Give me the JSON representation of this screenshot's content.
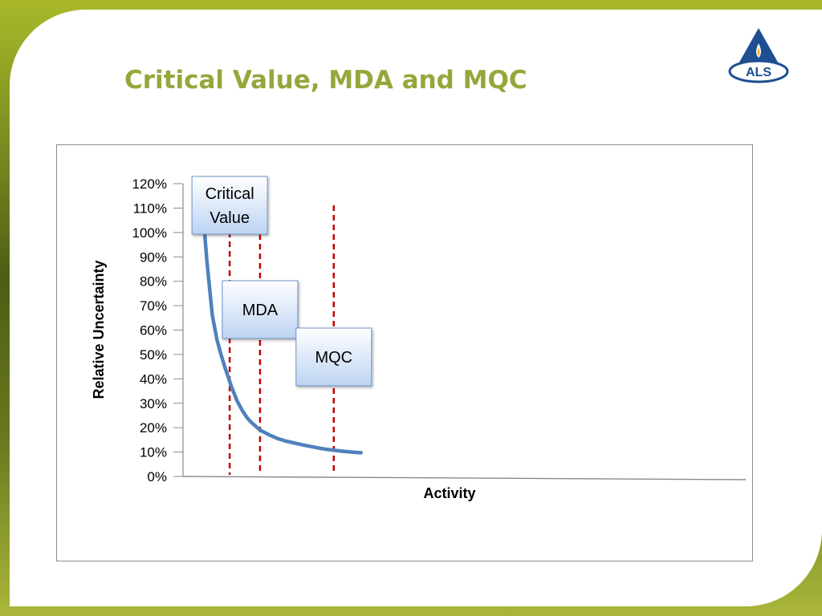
{
  "slide": {
    "title": "Critical Value, MDA and MQC",
    "logo_text": "ALS"
  },
  "colors": {
    "title": "#93a83a",
    "curve": "#4f81bd",
    "marker_line": "#c00000",
    "logo_blue": "#1d4f91"
  },
  "chart_data": {
    "type": "line",
    "title": "",
    "xlabel": "Activity",
    "ylabel": "Relative Uncertainty",
    "ylim": [
      0,
      120
    ],
    "y_ticks": [
      "0%",
      "10%",
      "20%",
      "30%",
      "40%",
      "50%",
      "60%",
      "70%",
      "80%",
      "90%",
      "100%",
      "110%",
      "120%"
    ],
    "grid": false,
    "series": [
      {
        "x": [
          0.14,
          0.2,
          0.3,
          0.4,
          0.5,
          0.6,
          0.7,
          0.8,
          1.0,
          1.2,
          1.4,
          1.6,
          2.0,
          2.5,
          3.0,
          3.5,
          4.0,
          4.5,
          5.0,
          5.5,
          6.0,
          6.5,
          7.0,
          8.0,
          9.0,
          10.0
        ],
        "values": [
          108,
          88,
          66,
          56,
          50,
          45,
          41,
          37,
          31,
          27,
          24,
          22,
          19,
          17,
          15.5,
          14.5,
          13.8,
          13.2,
          12.6,
          12.1,
          11.6,
          11.2,
          10.9,
          10.4,
          10.0,
          9.7
        ]
      }
    ],
    "markers": [
      {
        "label": "Critical Value",
        "lines": [
          "Critical",
          "Value"
        ],
        "x": 0.75
      },
      {
        "label": "MDA",
        "lines": [
          "MDA"
        ],
        "x": 2.0
      },
      {
        "label": "MQC",
        "lines": [
          "MQC"
        ],
        "x": 7.3
      }
    ]
  }
}
